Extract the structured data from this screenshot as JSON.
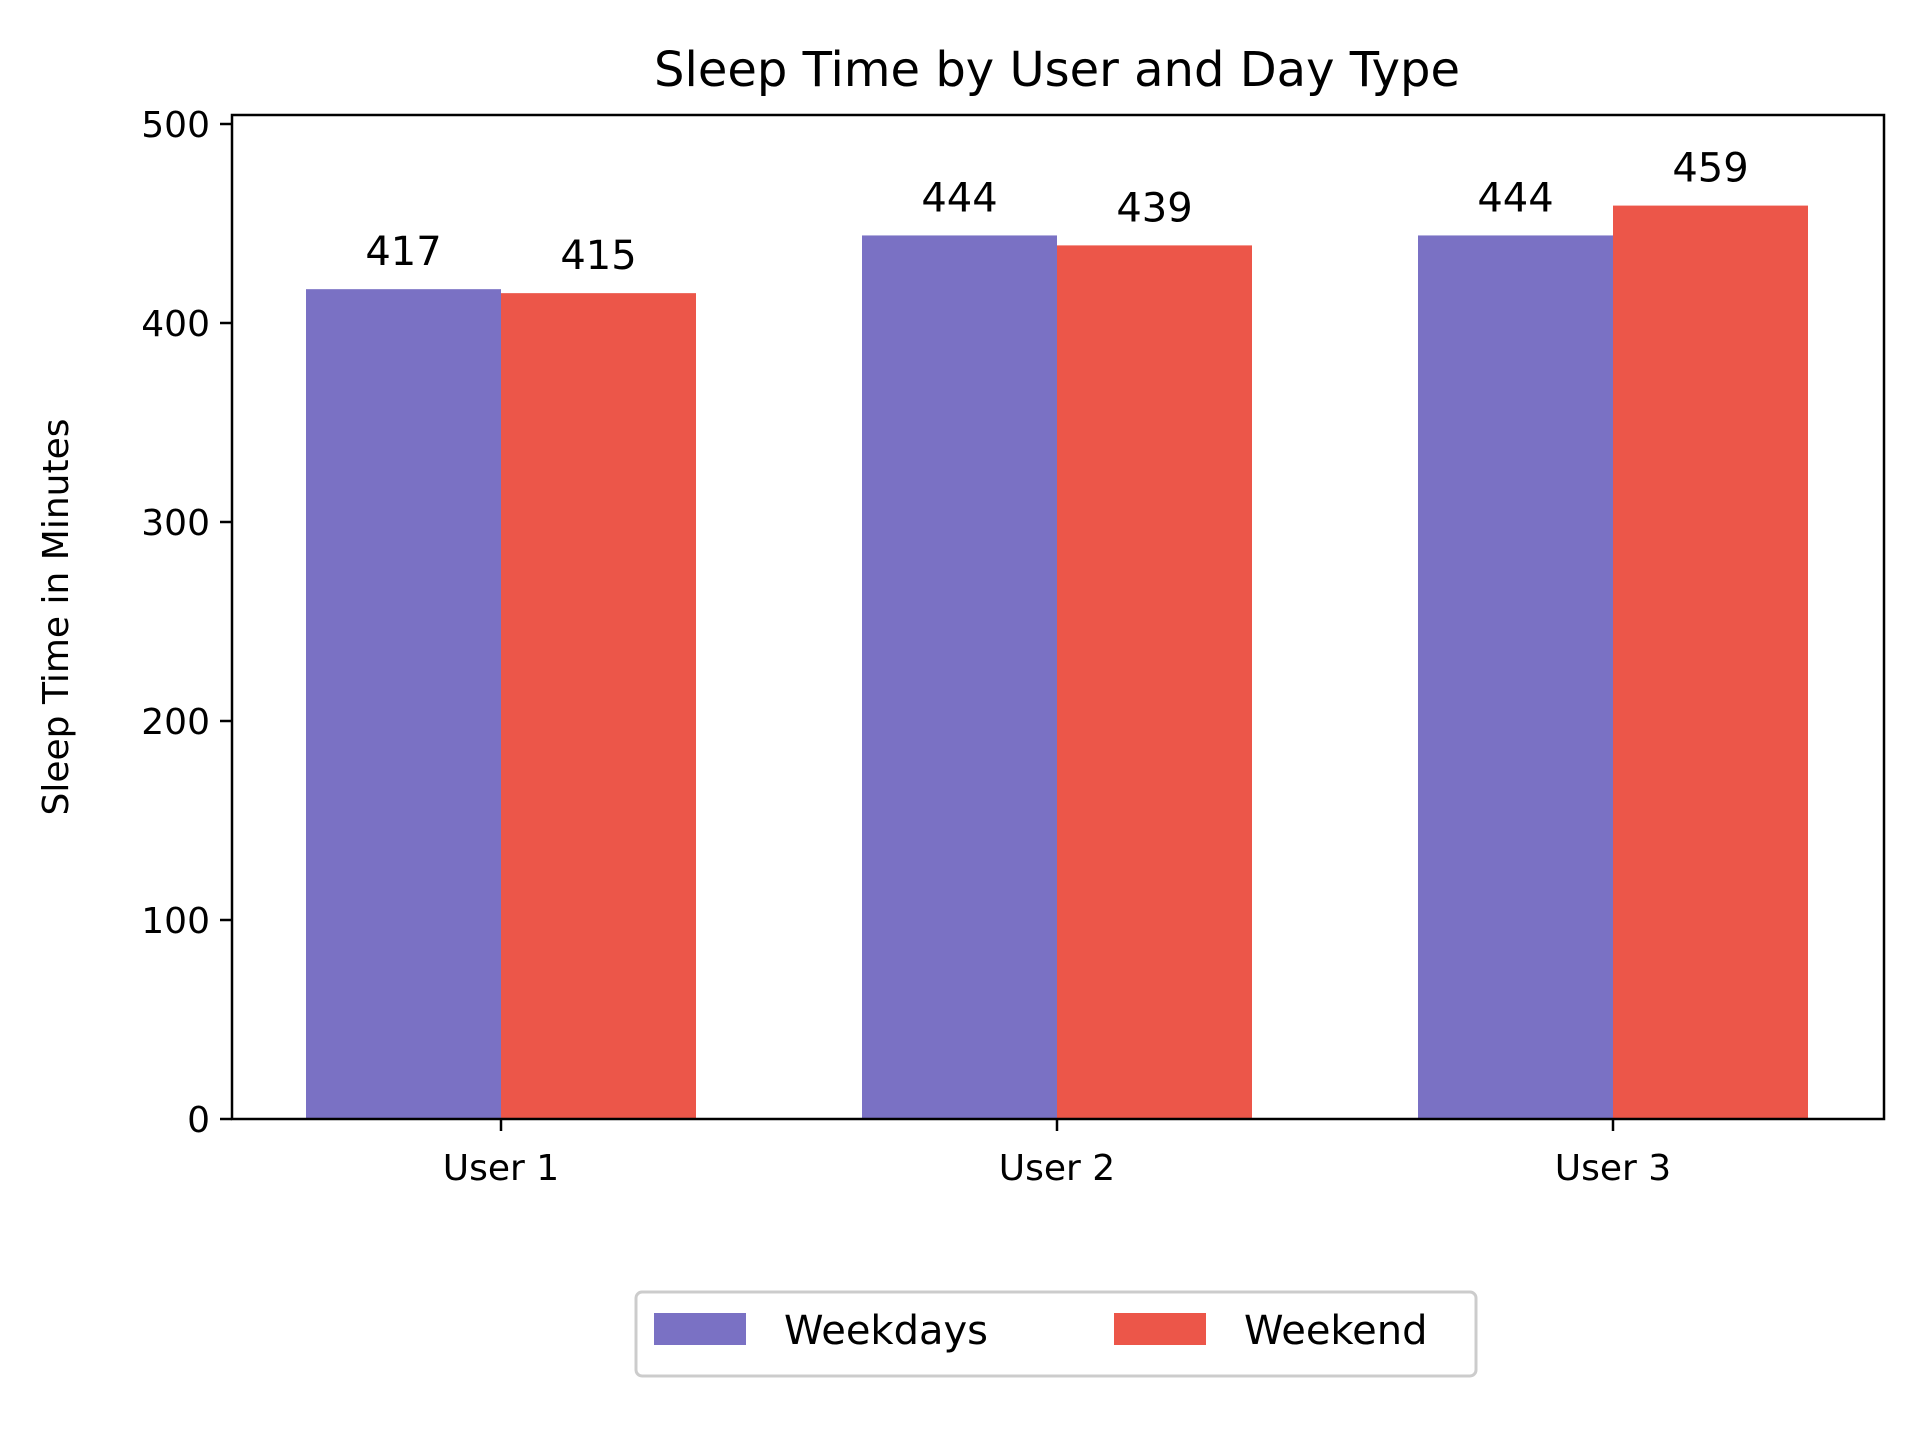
{
  "chart_data": {
    "type": "bar",
    "title": "Sleep Time by User and Day Type",
    "xlabel": "",
    "ylabel": "Sleep Time in Minutes",
    "categories": [
      "User 1",
      "User 2",
      "User 3"
    ],
    "series": [
      {
        "name": "Weekdays",
        "values": [
          417,
          444,
          444
        ],
        "color": "#7a71c4"
      },
      {
        "name": "Weekend",
        "values": [
          415,
          439,
          459
        ],
        "color": "#ec5649"
      }
    ],
    "ylim": [
      0,
      500
    ],
    "yticks": [
      0,
      100,
      200,
      300,
      400,
      500
    ],
    "grid": false,
    "legend_position": "bottom-center"
  }
}
